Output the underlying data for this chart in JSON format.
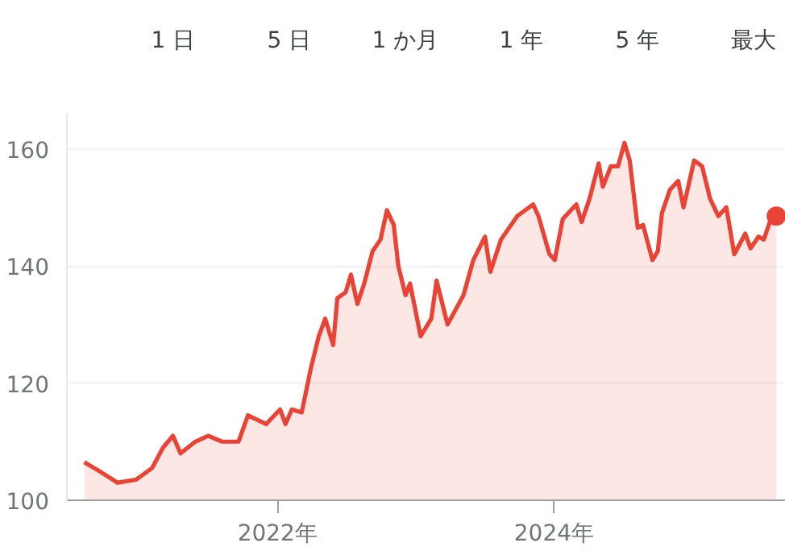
{
  "chart_data": {
    "type": "area",
    "annotations": [
      "1 日",
      "5 日",
      "1 か月",
      "1 年",
      "5 年",
      "最大"
    ],
    "xlim": [
      "2020-06-24",
      "2025-09-04"
    ],
    "xticks": [
      {
        "value": "2022-01-01",
        "label": "2022年"
      },
      {
        "value": "2024-01-01",
        "label": "2024年"
      }
    ],
    "ylim": [
      100,
      166
    ],
    "yticks": [
      100,
      120,
      140,
      160
    ],
    "grid": "y",
    "line_style": "solid",
    "series": [
      {
        "color": "#ea4335",
        "x": [
          "2020-08-09",
          "2020-09-17",
          "2020-11-05",
          "2020-12-23",
          "2021-02-04",
          "2021-03-05",
          "2021-03-31",
          "2021-04-20",
          "2021-05-29",
          "2021-07-02",
          "2021-08-08",
          "2021-09-20",
          "2021-10-15",
          "2021-12-02",
          "2022-01-08",
          "2022-01-22",
          "2022-02-08",
          "2022-03-06",
          "2022-03-30",
          "2022-04-20",
          "2022-05-07",
          "2022-05-28",
          "2022-06-08",
          "2022-06-30",
          "2022-07-14",
          "2022-07-31",
          "2022-08-18",
          "2022-09-09",
          "2022-09-30",
          "2022-10-17",
          "2022-11-04",
          "2022-11-16",
          "2022-12-05",
          "2022-12-17",
          "2023-01-14",
          "2023-02-11",
          "2023-02-25",
          "2023-03-26",
          "2023-05-07",
          "2023-06-02",
          "2023-07-03",
          "2023-07-17",
          "2023-08-14",
          "2023-09-26",
          "2023-11-07",
          "2023-11-21",
          "2023-12-20",
          "2024-01-03",
          "2024-01-24",
          "2024-02-29",
          "2024-03-14",
          "2024-04-04",
          "2024-04-28",
          "2024-05-09",
          "2024-05-30",
          "2024-06-18",
          "2024-07-05",
          "2024-07-19",
          "2024-08-09",
          "2024-08-23",
          "2024-09-17",
          "2024-10-01",
          "2024-10-12",
          "2024-11-02",
          "2024-11-24",
          "2024-12-08",
          "2025-01-05",
          "2025-01-26",
          "2025-02-16",
          "2025-03-10",
          "2025-03-31",
          "2025-04-21",
          "2025-05-20",
          "2025-06-03",
          "2025-06-24",
          "2025-07-08",
          "2025-07-29",
          "2025-08-10"
        ],
        "values": [
          106.5,
          105,
          103,
          103.5,
          105.5,
          109,
          111,
          108,
          110,
          111,
          110,
          110,
          114.5,
          113,
          115.5,
          113,
          115.5,
          115,
          122.5,
          128,
          131,
          126.5,
          134.5,
          135.5,
          138.5,
          133.5,
          137,
          142.5,
          144.5,
          149.5,
          147,
          140,
          135,
          137,
          128,
          131,
          137.5,
          130,
          135,
          141,
          145,
          139,
          144.5,
          148.5,
          150.5,
          148.5,
          142,
          141,
          148,
          150.5,
          147.5,
          151.5,
          157.5,
          153.5,
          157,
          157,
          161,
          158,
          146.5,
          147,
          141,
          142.5,
          149,
          153,
          154.5,
          150,
          158,
          157,
          151.5,
          148.5,
          150,
          142,
          145.5,
          143,
          145,
          144.5,
          148.5,
          148.5
        ]
      },
      {
        "type": "scatter",
        "color": "#ea4335",
        "marker": "circle",
        "x": [
          "2025-08-10"
        ],
        "values": [
          148.5
        ]
      }
    ]
  }
}
